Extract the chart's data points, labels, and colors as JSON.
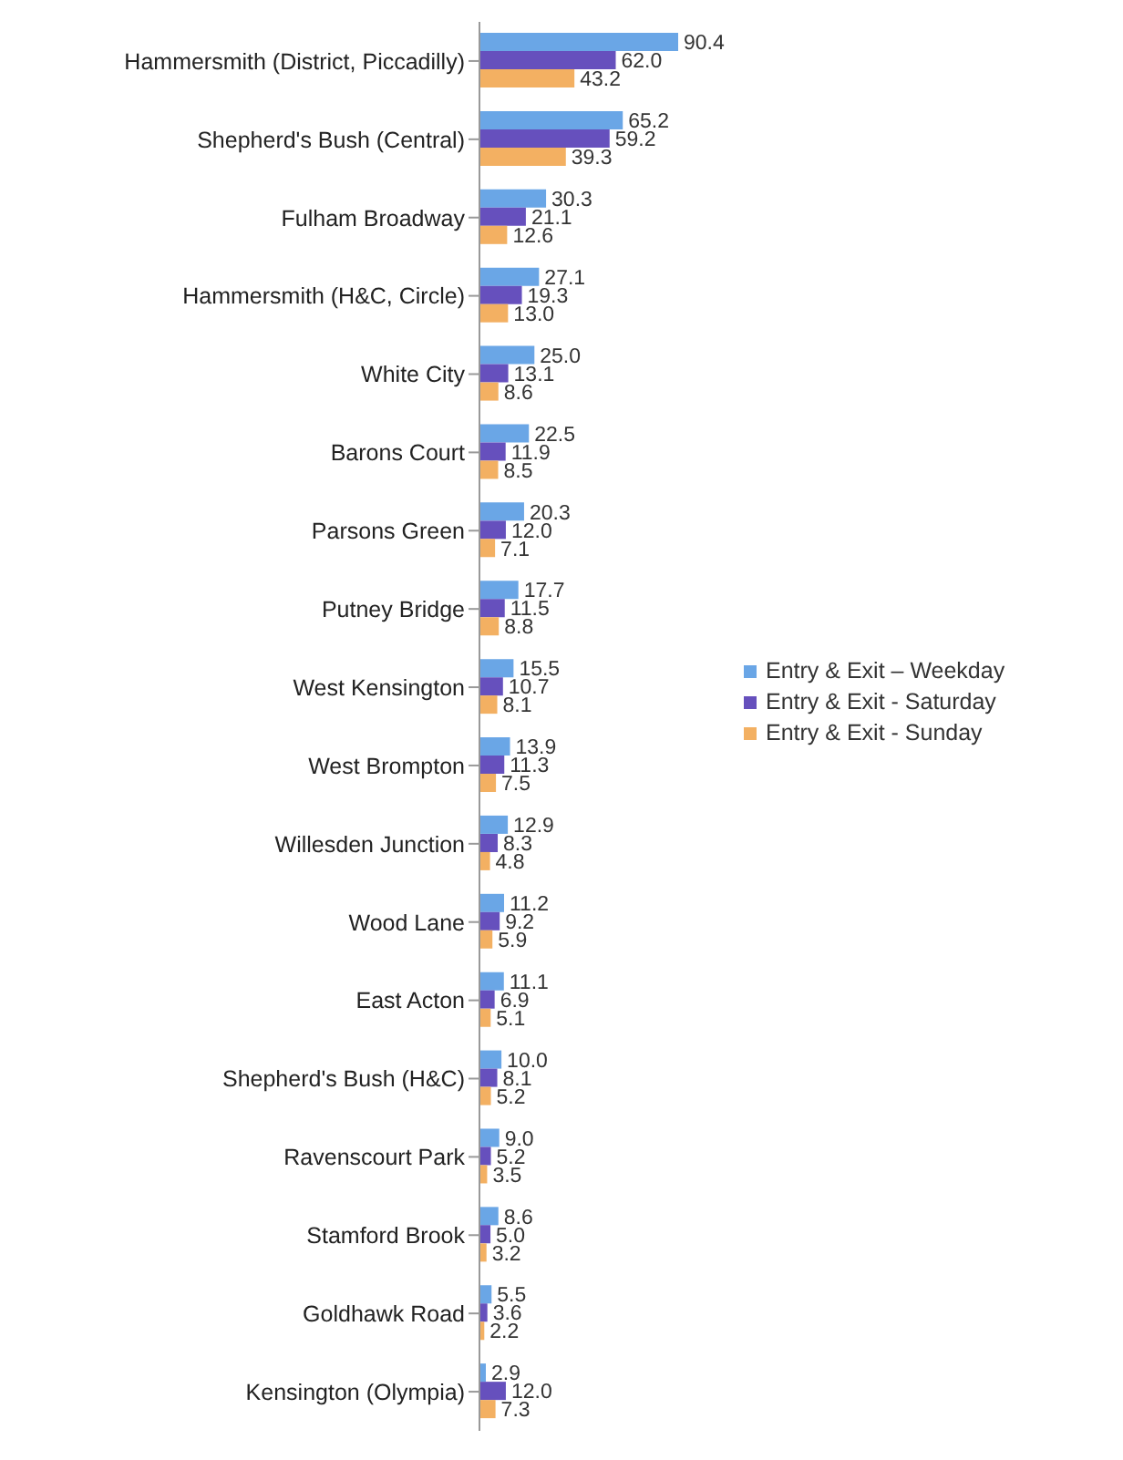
{
  "chart_data": {
    "type": "bar",
    "orientation": "horizontal",
    "legend": "right",
    "tick_labels": "y",
    "categories": [
      "Hammersmith (District, Piccadilly)",
      "Shepherd's Bush (Central)",
      "Fulham Broadway",
      "Hammersmith (H&C, Circle)",
      "White City",
      "Barons Court",
      "Parsons Green",
      "Putney Bridge",
      "West Kensington",
      "West Brompton",
      "Willesden Junction",
      "Wood Lane",
      "East Acton",
      "Shepherd's Bush (H&C)",
      "Ravenscourt Park",
      "Stamford Brook",
      "Goldhawk Road",
      "Kensington (Olympia)"
    ],
    "series": [
      {
        "name": "Entry & Exit – Weekday",
        "color": "#6aa6e6",
        "values": [
          90.4,
          65.2,
          30.3,
          27.1,
          25,
          22.5,
          20.3,
          17.7,
          15.5,
          13.9,
          12.9,
          11.2,
          11.1,
          10,
          9,
          8.6,
          5.5,
          2.9
        ],
        "value_labels": [
          "90.4",
          "65.2",
          "30.3",
          "27.1",
          "25.0",
          "22.5",
          "20.3",
          "17.7",
          "15.5",
          "13.9",
          "12.9",
          "11.2",
          "11.1",
          "10.0",
          "9.0",
          "8.6",
          "5.5",
          "2.9"
        ]
      },
      {
        "name": "Entry & Exit - Saturday",
        "color": "#6650bd",
        "values": [
          62,
          59.2,
          21.1,
          19.3,
          13.1,
          11.9,
          12,
          11.5,
          10.7,
          11.3,
          8.3,
          9.2,
          6.9,
          8.1,
          5.2,
          5,
          3.6,
          12
        ],
        "value_labels": [
          "62.0",
          "59.2",
          "21.1",
          "19.3",
          "13.1",
          "11.9",
          "12.0",
          "11.5",
          "10.7",
          "11.3",
          "8.3",
          "9.2",
          "6.9",
          "8.1",
          "5.2",
          "5.0",
          "3.6",
          "12.0"
        ]
      },
      {
        "name": "Entry & Exit - Sunday",
        "color": "#f3b062",
        "values": [
          43.2,
          39.3,
          12.6,
          13,
          8.6,
          8.5,
          7.1,
          8.8,
          8.1,
          7.5,
          4.8,
          5.9,
          5.1,
          5.2,
          3.5,
          3.2,
          2.2,
          7.3
        ],
        "value_labels": [
          "43.2",
          "39.3",
          "12.6",
          "13.0",
          "8.6",
          "8.5",
          "7.1",
          "8.8",
          "8.1",
          "7.5",
          "4.8",
          "5.9",
          "5.1",
          "5.2",
          "3.5",
          "3.2",
          "2.2",
          "7.3"
        ]
      }
    ]
  }
}
